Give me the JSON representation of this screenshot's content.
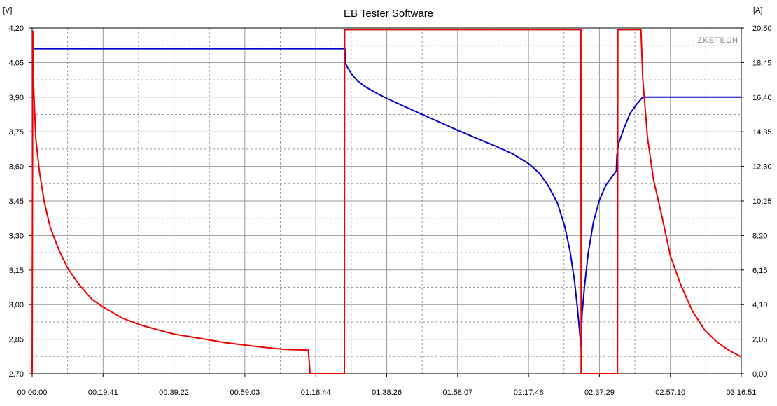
{
  "chart_data": {
    "type": "line",
    "title": "EB Tester Software",
    "watermark": "ZKETECH",
    "left_axis": {
      "unit_label": "[V]",
      "range": [
        2.7,
        4.2
      ],
      "ticks": [
        "4,20",
        "4,05",
        "3,90",
        "3,75",
        "3,60",
        "3,45",
        "3,30",
        "3,15",
        "3,00",
        "2,85",
        "2,70"
      ],
      "tick_values": [
        4.2,
        4.05,
        3.9,
        3.75,
        3.6,
        3.45,
        3.3,
        3.15,
        3.0,
        2.85,
        2.7
      ]
    },
    "right_axis": {
      "unit_label": "[A]",
      "range": [
        0.0,
        20.5
      ],
      "ticks": [
        "20,50",
        "18,45",
        "16,40",
        "14,35",
        "12,30",
        "10,25",
        "8,20",
        "6,15",
        "4,10",
        "2,05",
        "0,00"
      ],
      "tick_values": [
        20.5,
        18.45,
        16.4,
        14.35,
        12.3,
        10.25,
        8.2,
        6.15,
        4.1,
        2.05,
        0.0
      ]
    },
    "x_axis": {
      "range_seconds": [
        0,
        11811
      ],
      "ticks": [
        "00:00:00",
        "00:19:41",
        "00:39:22",
        "00:59:03",
        "01:18:44",
        "01:38:26",
        "01:58:07",
        "02:17:48",
        "02:37:29",
        "02:57:10",
        "03:16:51"
      ],
      "tick_seconds": [
        0,
        1181,
        2362,
        3543,
        4724,
        5906,
        7087,
        8268,
        9449,
        10630,
        11811
      ]
    },
    "grid": true,
    "colors": {
      "voltage": "#0000cc",
      "current": "#ee0000",
      "grid": "#999999",
      "axis": "#000000",
      "watermark": "#888888"
    },
    "series": [
      {
        "axis": "left",
        "color": "#0000cc",
        "points": [
          [
            0,
            4.11
          ],
          [
            5210,
            4.11
          ],
          [
            5215,
            4.05
          ],
          [
            5250,
            4.03
          ],
          [
            5320,
            4.0
          ],
          [
            5420,
            3.97
          ],
          [
            5550,
            3.945
          ],
          [
            5750,
            3.915
          ],
          [
            5906,
            3.895
          ],
          [
            6200,
            3.86
          ],
          [
            6500,
            3.825
          ],
          [
            6800,
            3.79
          ],
          [
            7087,
            3.757
          ],
          [
            7400,
            3.722
          ],
          [
            7700,
            3.69
          ],
          [
            8000,
            3.655
          ],
          [
            8268,
            3.612
          ],
          [
            8450,
            3.57
          ],
          [
            8600,
            3.515
          ],
          [
            8750,
            3.44
          ],
          [
            8870,
            3.34
          ],
          [
            8960,
            3.23
          ],
          [
            9030,
            3.11
          ],
          [
            9080,
            2.99
          ],
          [
            9120,
            2.88
          ],
          [
            9140,
            2.82
          ],
          [
            9145,
            2.85
          ],
          [
            9160,
            2.96
          ],
          [
            9200,
            3.08
          ],
          [
            9260,
            3.22
          ],
          [
            9350,
            3.36
          ],
          [
            9450,
            3.455
          ],
          [
            9560,
            3.52
          ],
          [
            9660,
            3.555
          ],
          [
            9730,
            3.58
          ],
          [
            9740,
            3.65
          ],
          [
            9770,
            3.7
          ],
          [
            9850,
            3.76
          ],
          [
            9960,
            3.83
          ],
          [
            10070,
            3.87
          ],
          [
            10170,
            3.9
          ],
          [
            10500,
            3.9
          ],
          [
            11811,
            3.9
          ]
        ]
      },
      {
        "axis": "right",
        "color": "#ee0000",
        "points": [
          [
            0,
            0.0
          ],
          [
            10,
            20.3
          ],
          [
            25,
            17.0
          ],
          [
            60,
            14.0
          ],
          [
            120,
            12.0
          ],
          [
            200,
            10.2
          ],
          [
            300,
            8.7
          ],
          [
            450,
            7.3
          ],
          [
            600,
            6.2
          ],
          [
            800,
            5.2
          ],
          [
            1000,
            4.4
          ],
          [
            1181,
            3.95
          ],
          [
            1500,
            3.3
          ],
          [
            1800,
            2.9
          ],
          [
            2100,
            2.6
          ],
          [
            2362,
            2.35
          ],
          [
            2800,
            2.1
          ],
          [
            3200,
            1.85
          ],
          [
            3543,
            1.7
          ],
          [
            3900,
            1.55
          ],
          [
            4200,
            1.45
          ],
          [
            4600,
            1.4
          ],
          [
            4630,
            0.0
          ],
          [
            5200,
            0.0
          ],
          [
            5205,
            20.4
          ],
          [
            9140,
            20.4
          ],
          [
            9145,
            0.0
          ],
          [
            9750,
            0.0
          ],
          [
            9755,
            20.4
          ],
          [
            10140,
            20.4
          ],
          [
            10170,
            17.5
          ],
          [
            10250,
            14.0
          ],
          [
            10350,
            11.5
          ],
          [
            10480,
            9.5
          ],
          [
            10630,
            7.0
          ],
          [
            10800,
            5.3
          ],
          [
            11000,
            3.7
          ],
          [
            11200,
            2.6
          ],
          [
            11400,
            1.9
          ],
          [
            11600,
            1.4
          ],
          [
            11811,
            1.0
          ]
        ]
      }
    ]
  }
}
